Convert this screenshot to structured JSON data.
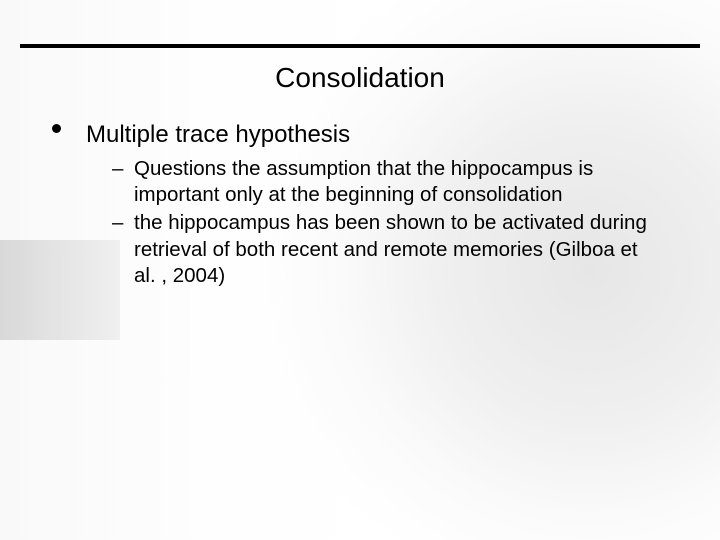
{
  "colors": {
    "rule": "#000000",
    "text": "#000000",
    "background": "#ffffff",
    "deco_box": "#cfcfcf"
  },
  "typography": {
    "title_fontsize_pt": 21,
    "bullet_fontsize_pt": 18,
    "sub_fontsize_pt": 15,
    "font_family": "Arial"
  },
  "slide": {
    "title": "Consolidation",
    "bullets": [
      {
        "text": "Multiple trace hypothesis",
        "sub": [
          "Questions the assumption that the hippocampus is important only at the beginning of consolidation",
          "the hippocampus has been shown to be activated during retrieval of both recent and remote memories (Gilboa et al. , 2004)"
        ]
      }
    ]
  }
}
